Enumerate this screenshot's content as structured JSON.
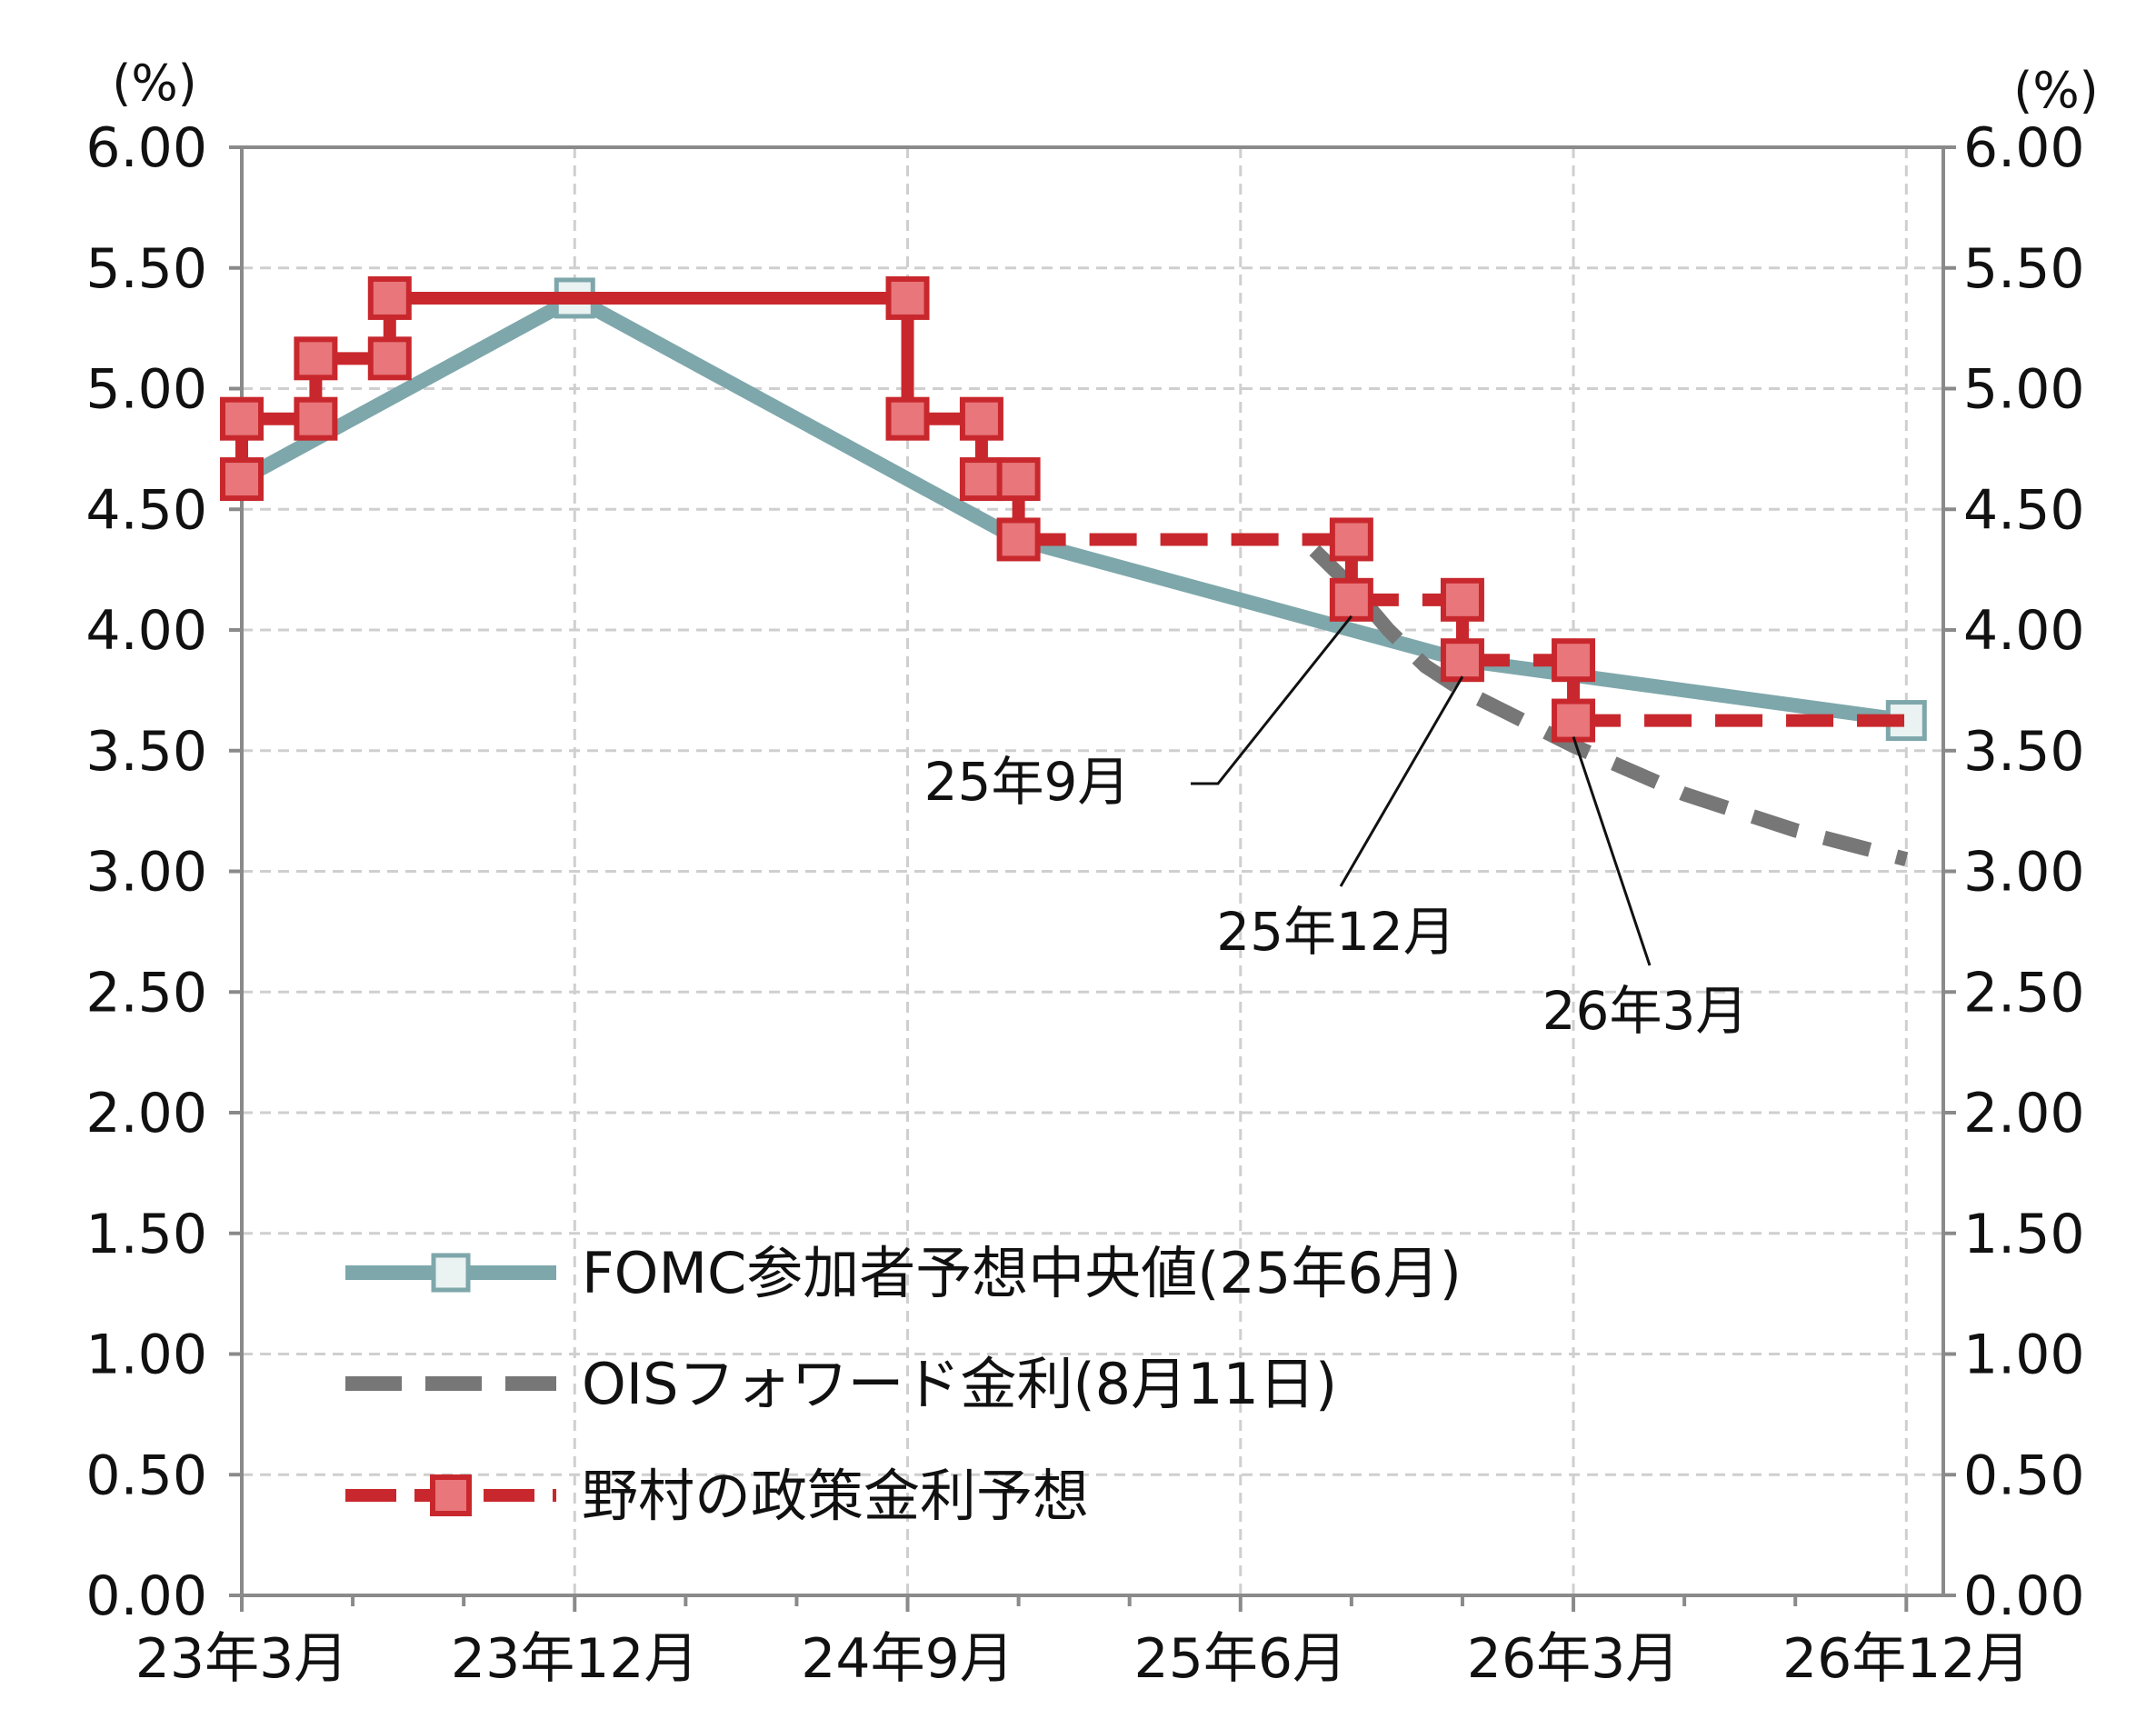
{
  "chart_data": {
    "type": "line",
    "y_unit_left": "(%)",
    "y_unit_right": "(%)",
    "ylim": [
      0,
      6
    ],
    "y_ticks": [
      "0.00",
      "0.50",
      "1.00",
      "1.50",
      "2.00",
      "2.50",
      "3.00",
      "3.50",
      "4.00",
      "4.50",
      "5.00",
      "5.50",
      "6.00"
    ],
    "x_tick_labels": [
      "23年3月",
      "23年12月",
      "24年9月",
      "25年6月",
      "26年3月",
      "26年12月"
    ],
    "x_tick_dates": [
      "2023-03",
      "2023-12",
      "2024-09",
      "2025-06",
      "2026-03",
      "2026-12"
    ],
    "grid": true,
    "legend_placement": "bottom-left",
    "series": [
      {
        "name": "FOMC参加者予想中央値(25年6月)",
        "color": "#7ea7ab",
        "style": "solid",
        "marker": "open-square",
        "points": [
          {
            "x": "2023-03",
            "y": 4.625
          },
          {
            "x": "2023-12",
            "y": 5.375
          },
          {
            "x": "2024-12",
            "y": 4.375
          },
          {
            "x": "2025-12",
            "y": 3.875
          },
          {
            "x": "2026-12",
            "y": 3.625
          }
        ],
        "marker_at": [
          "2023-12",
          "2026-12"
        ]
      },
      {
        "name": "OISフォワード金利(8月11日)",
        "color": "#777777",
        "style": "dashed",
        "marker": "none",
        "points": [
          {
            "x": "2025-08",
            "y": 4.33
          },
          {
            "x": "2025-09",
            "y": 4.18
          },
          {
            "x": "2025-10",
            "y": 4.0
          },
          {
            "x": "2025-11",
            "y": 3.85
          },
          {
            "x": "2025-12",
            "y": 3.75
          },
          {
            "x": "2026-03",
            "y": 3.52
          },
          {
            "x": "2026-06",
            "y": 3.32
          },
          {
            "x": "2026-09",
            "y": 3.17
          },
          {
            "x": "2026-12",
            "y": 3.05
          }
        ]
      },
      {
        "name": "野村の政策金利予想",
        "color": "#c8282d",
        "marker_fill": "#e8767a",
        "style": "solid-then-dashed",
        "marker": "filled-square",
        "dashed_from": "2024-12",
        "points": [
          {
            "x": "2023-03",
            "y": 4.625
          },
          {
            "x": "2023-03",
            "y": 4.875
          },
          {
            "x": "2023-05",
            "y": 4.875
          },
          {
            "x": "2023-05",
            "y": 5.125
          },
          {
            "x": "2023-07",
            "y": 5.125
          },
          {
            "x": "2023-07",
            "y": 5.375
          },
          {
            "x": "2024-09",
            "y": 5.375
          },
          {
            "x": "2024-09",
            "y": 4.875
          },
          {
            "x": "2024-11",
            "y": 4.875
          },
          {
            "x": "2024-11",
            "y": 4.625
          },
          {
            "x": "2024-12",
            "y": 4.625
          },
          {
            "x": "2024-12",
            "y": 4.375
          },
          {
            "x": "2025-09",
            "y": 4.375
          },
          {
            "x": "2025-09",
            "y": 4.125
          },
          {
            "x": "2025-12",
            "y": 4.125
          },
          {
            "x": "2025-12",
            "y": 3.875
          },
          {
            "x": "2026-03",
            "y": 3.875
          },
          {
            "x": "2026-03",
            "y": 3.625
          },
          {
            "x": "2026-12",
            "y": 3.625
          }
        ],
        "marker_count": 18
      }
    ],
    "annotations": [
      {
        "text": "25年9月",
        "points_to": {
          "x": "2025-09",
          "y": 4.125
        }
      },
      {
        "text": "25年12月",
        "points_to": {
          "x": "2025-12",
          "y": 3.875
        }
      },
      {
        "text": "26年3月",
        "points_to": {
          "x": "2026-03",
          "y": 3.625
        }
      }
    ]
  }
}
